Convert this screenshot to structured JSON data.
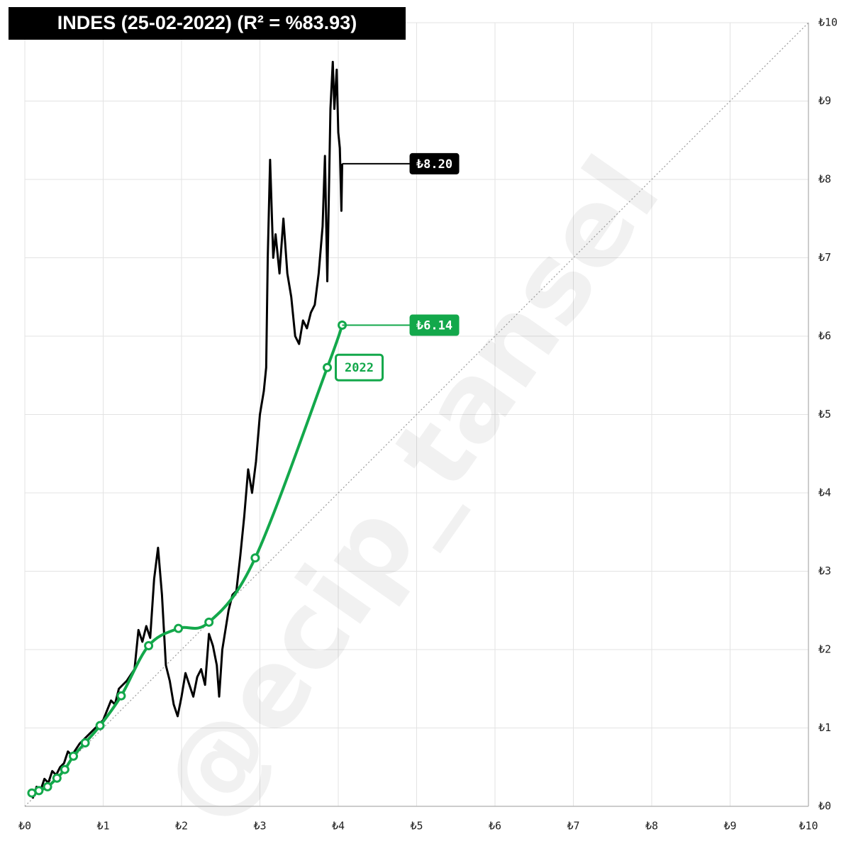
{
  "chart_data": {
    "type": "line",
    "title": "INDES (25-02-2022) (R² = %83.93)",
    "watermark": "@ecip_tansel",
    "xlim": [
      0,
      10
    ],
    "ylim": [
      0,
      10
    ],
    "xticks": [
      {
        "value": 0,
        "label": "₺0"
      },
      {
        "value": 1,
        "label": "₺1"
      },
      {
        "value": 2,
        "label": "₺2"
      },
      {
        "value": 3,
        "label": "₺3"
      },
      {
        "value": 4,
        "label": "₺4"
      },
      {
        "value": 5,
        "label": "₺5"
      },
      {
        "value": 6,
        "label": "₺6"
      },
      {
        "value": 7,
        "label": "₺7"
      },
      {
        "value": 8,
        "label": "₺8"
      },
      {
        "value": 9,
        "label": "₺9"
      },
      {
        "value": 10,
        "label": "₺10"
      }
    ],
    "yticks": [
      {
        "value": 0,
        "label": "₺0"
      },
      {
        "value": 1,
        "label": "₺1"
      },
      {
        "value": 2,
        "label": "₺2"
      },
      {
        "value": 3,
        "label": "₺3"
      },
      {
        "value": 4,
        "label": "₺4"
      },
      {
        "value": 5,
        "label": "₺5"
      },
      {
        "value": 6,
        "label": "₺6"
      },
      {
        "value": 7,
        "label": "₺7"
      },
      {
        "value": 8,
        "label": "₺8"
      },
      {
        "value": 9,
        "label": "₺9"
      },
      {
        "value": 10,
        "label": "₺10"
      }
    ],
    "grid": true,
    "series": [
      {
        "color": "#000000",
        "markers": false,
        "x": [
          0.1,
          0.15,
          0.2,
          0.25,
          0.3,
          0.35,
          0.4,
          0.45,
          0.5,
          0.55,
          0.6,
          0.7,
          0.8,
          0.9,
          1.0,
          1.1,
          1.15,
          1.2,
          1.3,
          1.4,
          1.45,
          1.5,
          1.55,
          1.6,
          1.65,
          1.7,
          1.75,
          1.8,
          1.85,
          1.9,
          1.95,
          2.0,
          2.05,
          2.1,
          2.15,
          2.2,
          2.25,
          2.3,
          2.35,
          2.4,
          2.45,
          2.48,
          2.52,
          2.6,
          2.65,
          2.7,
          2.75,
          2.8,
          2.85,
          2.9,
          2.95,
          3.0,
          3.05,
          3.08,
          3.1,
          3.13,
          3.17,
          3.2,
          3.25,
          3.3,
          3.35,
          3.4,
          3.45,
          3.5,
          3.55,
          3.6,
          3.65,
          3.7,
          3.75,
          3.8,
          3.83,
          3.86,
          3.9,
          3.93,
          3.95,
          3.98,
          4.0,
          4.02,
          4.04,
          4.05
        ],
        "values": [
          0.1,
          0.25,
          0.2,
          0.35,
          0.3,
          0.45,
          0.4,
          0.5,
          0.55,
          0.7,
          0.65,
          0.8,
          0.9,
          1.0,
          1.1,
          1.35,
          1.3,
          1.5,
          1.6,
          1.75,
          2.25,
          2.1,
          2.3,
          2.15,
          2.9,
          3.3,
          2.7,
          1.8,
          1.6,
          1.3,
          1.15,
          1.4,
          1.7,
          1.55,
          1.4,
          1.65,
          1.75,
          1.55,
          2.2,
          2.05,
          1.8,
          1.4,
          2.0,
          2.5,
          2.7,
          2.75,
          3.2,
          3.7,
          4.3,
          4.0,
          4.4,
          5.0,
          5.3,
          5.6,
          7.0,
          8.25,
          7.0,
          7.3,
          6.8,
          7.5,
          6.8,
          6.5,
          6.0,
          5.9,
          6.2,
          6.1,
          6.3,
          6.4,
          6.8,
          7.4,
          8.3,
          6.7,
          8.9,
          9.5,
          8.9,
          9.4,
          8.6,
          8.4,
          7.6,
          8.2
        ]
      },
      {
        "color": "#13a84b",
        "markers": true,
        "x": [
          0.09,
          0.18,
          0.29,
          0.41,
          0.51,
          0.62,
          0.77,
          0.96,
          1.23,
          1.58,
          1.96,
          2.35,
          2.94,
          3.86,
          4.05
        ],
        "values": [
          0.17,
          0.2,
          0.25,
          0.36,
          0.47,
          0.64,
          0.81,
          1.03,
          1.41,
          2.05,
          2.27,
          2.35,
          3.17,
          5.6,
          6.14
        ]
      }
    ],
    "annotations": [
      {
        "series": 0,
        "x": 4.05,
        "y": 8.2,
        "label": "₺8.20"
      },
      {
        "series": 1,
        "x": 4.05,
        "y": 6.14,
        "label": "₺6.14"
      },
      {
        "series": 1,
        "x": 3.86,
        "y": 5.6,
        "label": "2022",
        "style": "outline"
      }
    ]
  }
}
